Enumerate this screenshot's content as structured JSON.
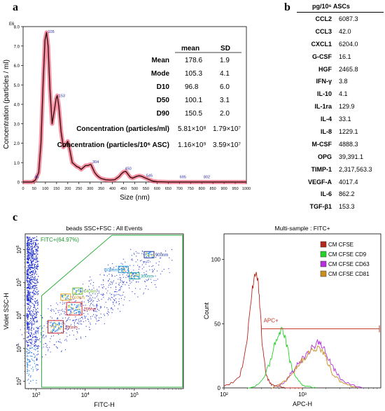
{
  "panels": {
    "a": "a",
    "b": "b",
    "c": "c"
  },
  "chart_data": [
    {
      "type": "line",
      "panel": "a",
      "xlabel": "Size (nm)",
      "ylabel": "Concentration (particles / ml)",
      "y_multiplier": "E6",
      "xlim": [
        0,
        1000
      ],
      "ylim": [
        0,
        8
      ],
      "x_ticks": [
        "0",
        "50",
        "100",
        "150",
        "200",
        "250",
        "300",
        "350",
        "400",
        "450",
        "500",
        "550",
        "600",
        "650",
        "700",
        "750",
        "800",
        "850",
        "900",
        "950",
        "1000"
      ],
      "y_ticks": [
        "0",
        "1.0",
        "2.0",
        "3.0",
        "4.0",
        "5.0",
        "6.0",
        "7.0",
        "8.0"
      ],
      "series": [
        {
          "x": [
            0,
            40,
            55,
            70,
            80,
            90,
            98,
            105,
            112,
            120,
            130,
            140,
            148,
            153,
            160,
            170,
            180,
            190,
            200,
            210,
            220,
            230,
            240,
            250,
            260,
            270,
            280,
            290,
            300,
            304,
            310,
            320,
            330,
            340,
            350,
            370,
            390,
            410,
            430,
            440,
            450,
            460,
            470,
            480,
            490,
            500,
            510,
            520,
            530,
            545,
            560,
            580,
            600,
            650,
            700,
            800,
            900,
            1000
          ],
          "y": [
            0,
            0,
            0.1,
            0.5,
            2.0,
            5.2,
            7.3,
            7.7,
            7.0,
            4.8,
            3.0,
            3.7,
            4.3,
            4.45,
            3.9,
            2.6,
            1.8,
            1.9,
            2.1,
            1.6,
            1.0,
            0.9,
            0.8,
            0.75,
            0.65,
            0.75,
            0.85,
            0.85,
            0.9,
            0.9,
            0.75,
            0.5,
            0.35,
            0.25,
            0.18,
            0.12,
            0.1,
            0.12,
            0.28,
            0.42,
            0.52,
            0.55,
            0.4,
            0.25,
            0.2,
            0.25,
            0.3,
            0.32,
            0.3,
            0.22,
            0.15,
            0.05,
            0.02,
            0,
            0,
            0,
            0,
            0
          ]
        }
      ],
      "peak_labels": [
        {
          "x": 45,
          "y": 0.12,
          "text": "45"
        },
        {
          "x": 105,
          "y": 7.6,
          "text": "105"
        },
        {
          "x": 153,
          "y": 4.3,
          "text": "153"
        },
        {
          "x": 304,
          "y": 0.9,
          "text": "304"
        },
        {
          "x": 450,
          "y": 0.55,
          "text": "450"
        },
        {
          "x": 545,
          "y": 0.2,
          "text": "545"
        },
        {
          "x": 695,
          "y": 0.12,
          "text": "695"
        },
        {
          "x": 802,
          "y": 0.12,
          "text": "802"
        }
      ],
      "stats_table": {
        "col_mean": "mean",
        "col_sd": "SD",
        "rows": [
          {
            "label": "Mean",
            "mean": "178.6",
            "sd": "1.9"
          },
          {
            "label": "Mode",
            "mean": "105.3",
            "sd": "4.1"
          },
          {
            "label": "D10",
            "mean": "96.8",
            "sd": "6.0"
          },
          {
            "label": "D50",
            "mean": "100.1",
            "sd": "3.1"
          },
          {
            "label": "D90",
            "mean": "150.5",
            "sd": "2.0"
          },
          {
            "label": "Concentration  (particles/ml)",
            "mean": "5.81×10⁸",
            "sd": "1.79×10⁷"
          },
          {
            "label": "Concentration  (particles/10⁶ ASC)",
            "mean": "1.16×10⁹",
            "sd": "3.59×10⁷"
          }
        ]
      }
    },
    {
      "type": "table",
      "panel": "b",
      "header": "pg/10⁶ ASCs",
      "rows": [
        {
          "name": "CCL2",
          "value": "6087.3"
        },
        {
          "name": "CCL3",
          "value": "42.0"
        },
        {
          "name": "CXCL1",
          "value": "6204.0"
        },
        {
          "name": "G-CSF",
          "value": "16.1"
        },
        {
          "name": "HGF",
          "value": "2465.8"
        },
        {
          "name": "IFN-γ",
          "value": "3.8"
        },
        {
          "name": "IL-10",
          "value": "4.1"
        },
        {
          "name": "IL-1ra",
          "value": "129.9"
        },
        {
          "name": "IL-4",
          "value": "33.1"
        },
        {
          "name": "IL-8",
          "value": "1229.1"
        },
        {
          "name": "M-CSF",
          "value": "4888.3"
        },
        {
          "name": "OPG",
          "value": "39,391.1"
        },
        {
          "name": "TIMP-1",
          "value": "2,317,563.3"
        },
        {
          "name": "VEGF-A",
          "value": "4017.4"
        },
        {
          "name": "IL-6",
          "value": "862.2"
        },
        {
          "name": "TGF-β1",
          "value": "153.3"
        }
      ]
    },
    {
      "type": "scatter",
      "panel": "c-left",
      "title": "beads SSC+FSC : All Events",
      "xlabel": "FITC-H",
      "ylabel": "Violet SSC-H",
      "x_log": true,
      "y_log": true,
      "xlim": [
        600,
        1000000
      ],
      "ylim": [
        60,
        3000000
      ],
      "gate_label": "FITC+(64.97%)",
      "bead_gates": [
        {
          "text": "900nm",
          "x": 200000,
          "y": 700000,
          "color": "#1c2f9a"
        },
        {
          "text": "500nm",
          "x": 60000,
          "y": 250000,
          "color": "#1a8fd6"
        },
        {
          "text": "300nm",
          "x": 100000,
          "y": 160000,
          "color": "#18a39a"
        },
        {
          "text": "240nm",
          "x": 7000,
          "y": 55000,
          "color": "#6cba3c"
        },
        {
          "text": "200nm",
          "x": 4000,
          "y": 36000,
          "color": "#e5a21c"
        },
        {
          "text": "160nm",
          "x": 6000,
          "y": 16000,
          "color": "#d2282e"
        },
        {
          "text": "100nm",
          "x": 2500,
          "y": 4500,
          "color": "#c0272d"
        }
      ]
    },
    {
      "type": "line",
      "panel": "c-right",
      "title": "Multi-sample : FITC+",
      "xlabel": "APC-H",
      "ylabel": "Count",
      "x_log": true,
      "xlim": [
        100,
        10000
      ],
      "ylim": [
        0,
        120
      ],
      "x_ticks": [
        "10²",
        "10³"
      ],
      "y_ticks": [
        "0",
        "50",
        "100"
      ],
      "gate_label": "APC+",
      "series": [
        {
          "name": "CM CFSE",
          "color": "#b5281e",
          "x": [
            100,
            130,
            160,
            190,
            210,
            230,
            250,
            270,
            290,
            310,
            340,
            380,
            420,
            480,
            600,
            800,
            1000
          ],
          "y": [
            2,
            4,
            10,
            30,
            55,
            78,
            90,
            85,
            60,
            30,
            12,
            4,
            2,
            1,
            0,
            0,
            0
          ]
        },
        {
          "name": "CM CFSE CD9",
          "color": "#27d12b",
          "x": [
            200,
            260,
            320,
            380,
            440,
            500,
            550,
            600,
            650,
            700,
            800,
            900,
            1000,
            1200,
            1500
          ],
          "y": [
            0,
            2,
            8,
            18,
            35,
            42,
            45,
            40,
            30,
            20,
            10,
            5,
            2,
            1,
            0
          ]
        },
        {
          "name": "CM CFSE CD63",
          "color": "#b530d8",
          "x": [
            400,
            500,
            600,
            700,
            800,
            900,
            1000,
            1200,
            1400,
            1600,
            1800,
            2000,
            2300,
            2700,
            3200,
            4000,
            5000,
            6000
          ],
          "y": [
            0,
            2,
            5,
            10,
            15,
            20,
            22,
            28,
            32,
            36,
            33,
            28,
            20,
            12,
            6,
            3,
            1,
            0
          ]
        },
        {
          "name": "CM CFSE CD81",
          "color": "#c98e1c",
          "x": [
            400,
            500,
            600,
            700,
            800,
            900,
            1000,
            1200,
            1400,
            1600,
            1800,
            2000,
            2400,
            3000,
            4000,
            5000
          ],
          "y": [
            0,
            2,
            5,
            9,
            14,
            18,
            22,
            27,
            30,
            32,
            28,
            22,
            12,
            5,
            2,
            0
          ]
        }
      ]
    }
  ]
}
